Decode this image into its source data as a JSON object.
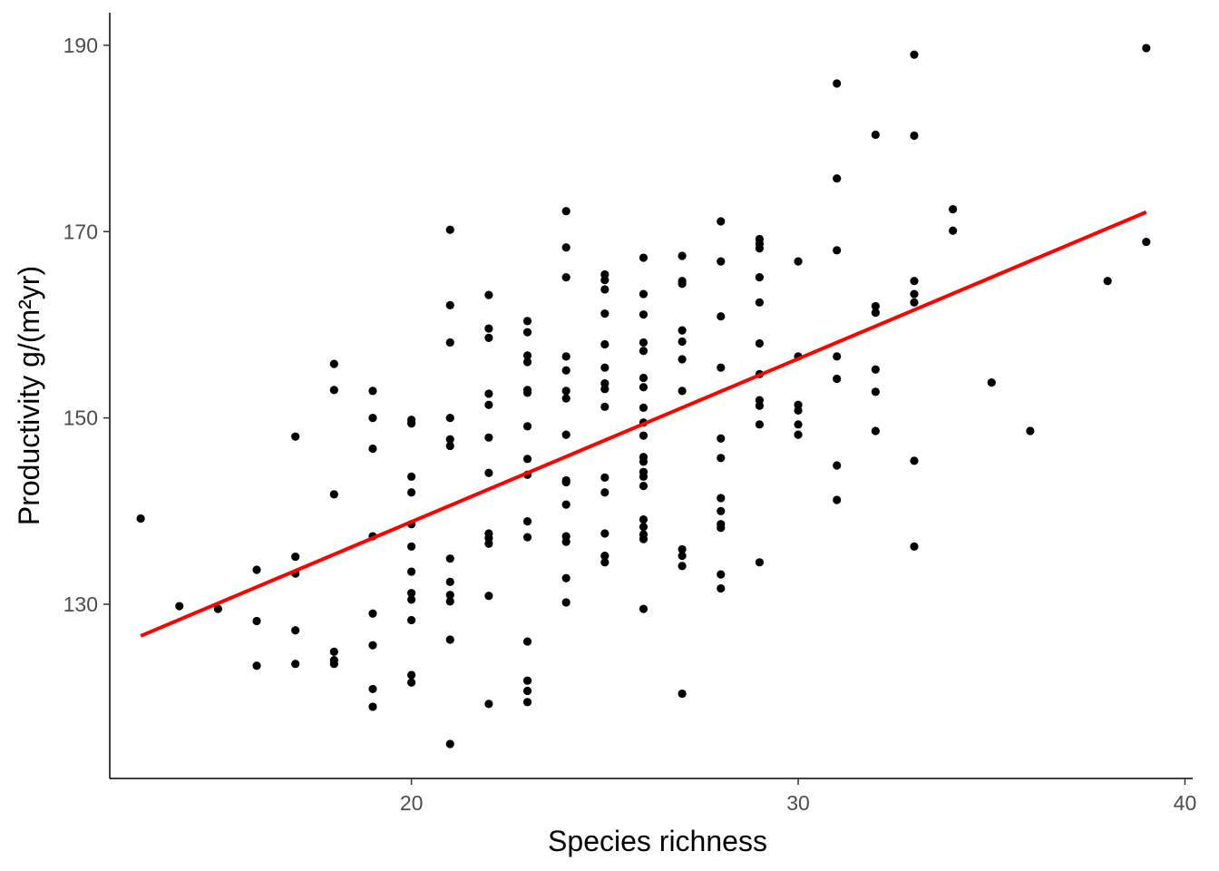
{
  "chart_data": {
    "type": "scatter",
    "xlabel": "Species richness",
    "ylabel": "Productivity g/(m²yr)",
    "xlim": [
      12.2,
      40.2
    ],
    "ylim": [
      111.3,
      193.5
    ],
    "x_ticks": [
      20,
      30,
      40
    ],
    "x_tick_labels": [
      "20",
      "30",
      "40"
    ],
    "y_ticks": [
      130,
      150,
      170,
      190
    ],
    "y_tick_labels": [
      "130",
      "150",
      "170",
      "190"
    ],
    "grid": false,
    "legend": "none",
    "point_color": "#000000",
    "points": [
      [
        13,
        139.2
      ],
      [
        14,
        129.8
      ],
      [
        15,
        129.5
      ],
      [
        16,
        133.7
      ],
      [
        16,
        128.2
      ],
      [
        16,
        123.4
      ],
      [
        17,
        148.0
      ],
      [
        17,
        135.1
      ],
      [
        17,
        133.3
      ],
      [
        17,
        127.2
      ],
      [
        17,
        123.6
      ],
      [
        18,
        155.8
      ],
      [
        18,
        153.0
      ],
      [
        18,
        141.8
      ],
      [
        18,
        124.9
      ],
      [
        18,
        124.0
      ],
      [
        18,
        123.6
      ],
      [
        19,
        152.9
      ],
      [
        19,
        150.0
      ],
      [
        19,
        146.7
      ],
      [
        19,
        137.3
      ],
      [
        19,
        129.0
      ],
      [
        19,
        125.6
      ],
      [
        19,
        120.9
      ],
      [
        19,
        119.0
      ],
      [
        20,
        149.8
      ],
      [
        20,
        149.4
      ],
      [
        20,
        143.7
      ],
      [
        20,
        142.0
      ],
      [
        20,
        138.6
      ],
      [
        20,
        136.2
      ],
      [
        20,
        133.5
      ],
      [
        20,
        131.2
      ],
      [
        20,
        130.5
      ],
      [
        20,
        128.3
      ],
      [
        20,
        122.4
      ],
      [
        20,
        121.6
      ],
      [
        21,
        170.2
      ],
      [
        21,
        162.1
      ],
      [
        21,
        158.1
      ],
      [
        21,
        150.0
      ],
      [
        21,
        147.7
      ],
      [
        21,
        147.0
      ],
      [
        21,
        134.9
      ],
      [
        21,
        132.4
      ],
      [
        21,
        131.0
      ],
      [
        21,
        130.3
      ],
      [
        21,
        126.2
      ],
      [
        21,
        115.0
      ],
      [
        22,
        163.2
      ],
      [
        22,
        159.6
      ],
      [
        22,
        158.6
      ],
      [
        22,
        152.6
      ],
      [
        22,
        151.4
      ],
      [
        22,
        147.9
      ],
      [
        22,
        144.1
      ],
      [
        22,
        137.6
      ],
      [
        22,
        137.1
      ],
      [
        22,
        136.5
      ],
      [
        22,
        130.9
      ],
      [
        22,
        119.3
      ],
      [
        23,
        160.4
      ],
      [
        23,
        159.2
      ],
      [
        23,
        156.7
      ],
      [
        23,
        156.0
      ],
      [
        23,
        153.0
      ],
      [
        23,
        152.7
      ],
      [
        23,
        149.1
      ],
      [
        23,
        145.6
      ],
      [
        23,
        143.9
      ],
      [
        23,
        138.9
      ],
      [
        23,
        137.2
      ],
      [
        23,
        126.0
      ],
      [
        23,
        121.8
      ],
      [
        23,
        120.7
      ],
      [
        23,
        119.5
      ],
      [
        24,
        172.2
      ],
      [
        24,
        168.3
      ],
      [
        24,
        165.1
      ],
      [
        24,
        156.6
      ],
      [
        24,
        155.1
      ],
      [
        24,
        152.9
      ],
      [
        24,
        152.1
      ],
      [
        24,
        148.2
      ],
      [
        24,
        143.3
      ],
      [
        24,
        143.1
      ],
      [
        24,
        140.7
      ],
      [
        24,
        137.3
      ],
      [
        24,
        136.7
      ],
      [
        24,
        132.8
      ],
      [
        24,
        130.2
      ],
      [
        25,
        165.4
      ],
      [
        25,
        164.8
      ],
      [
        25,
        163.8
      ],
      [
        25,
        161.2
      ],
      [
        25,
        157.9
      ],
      [
        25,
        155.4
      ],
      [
        25,
        153.7
      ],
      [
        25,
        153.1
      ],
      [
        25,
        151.2
      ],
      [
        25,
        143.6
      ],
      [
        25,
        142.0
      ],
      [
        25,
        137.6
      ],
      [
        25,
        135.2
      ],
      [
        25,
        134.5
      ],
      [
        26,
        167.2
      ],
      [
        26,
        163.3
      ],
      [
        26,
        161.1
      ],
      [
        26,
        158.1
      ],
      [
        26,
        157.2
      ],
      [
        26,
        154.3
      ],
      [
        26,
        153.3
      ],
      [
        26,
        151.1
      ],
      [
        26,
        149.5
      ],
      [
        26,
        148.1
      ],
      [
        26,
        145.8
      ],
      [
        26,
        145.3
      ],
      [
        26,
        144.2
      ],
      [
        26,
        143.7
      ],
      [
        26,
        142.7
      ],
      [
        26,
        139.1
      ],
      [
        26,
        138.3
      ],
      [
        26,
        137.5
      ],
      [
        26,
        137.0
      ],
      [
        26,
        129.5
      ],
      [
        27,
        167.4
      ],
      [
        27,
        164.7
      ],
      [
        27,
        164.4
      ],
      [
        27,
        159.4
      ],
      [
        27,
        158.2
      ],
      [
        27,
        156.3
      ],
      [
        27,
        152.9
      ],
      [
        27,
        135.9
      ],
      [
        27,
        135.2
      ],
      [
        27,
        134.1
      ],
      [
        27,
        120.4
      ],
      [
        28,
        171.1
      ],
      [
        28,
        166.8
      ],
      [
        28,
        160.9
      ],
      [
        28,
        155.4
      ],
      [
        28,
        147.8
      ],
      [
        28,
        145.7
      ],
      [
        28,
        141.4
      ],
      [
        28,
        140.0
      ],
      [
        28,
        138.6
      ],
      [
        28,
        138.2
      ],
      [
        28,
        133.2
      ],
      [
        28,
        131.7
      ],
      [
        29,
        169.2
      ],
      [
        29,
        168.7
      ],
      [
        29,
        168.2
      ],
      [
        29,
        165.1
      ],
      [
        29,
        162.4
      ],
      [
        29,
        158.0
      ],
      [
        29,
        154.7
      ],
      [
        29,
        151.9
      ],
      [
        29,
        151.3
      ],
      [
        29,
        149.3
      ],
      [
        29,
        134.5
      ],
      [
        30,
        166.8
      ],
      [
        30,
        156.6
      ],
      [
        30,
        151.4
      ],
      [
        30,
        150.8
      ],
      [
        30,
        149.3
      ],
      [
        30,
        148.2
      ],
      [
        31,
        185.9
      ],
      [
        31,
        175.7
      ],
      [
        31,
        168.0
      ],
      [
        31,
        156.6
      ],
      [
        31,
        154.2
      ],
      [
        31,
        144.9
      ],
      [
        31,
        141.2
      ],
      [
        32,
        180.4
      ],
      [
        32,
        162.0
      ],
      [
        32,
        161.3
      ],
      [
        32,
        155.2
      ],
      [
        32,
        152.8
      ],
      [
        32,
        148.6
      ],
      [
        33,
        189.0
      ],
      [
        33,
        180.3
      ],
      [
        33,
        164.7
      ],
      [
        33,
        163.3
      ],
      [
        33,
        162.4
      ],
      [
        33,
        145.4
      ],
      [
        33,
        136.2
      ],
      [
        34,
        172.4
      ],
      [
        34,
        170.1
      ],
      [
        35,
        153.8
      ],
      [
        36,
        148.6
      ],
      [
        38,
        164.7
      ],
      [
        39,
        189.7
      ],
      [
        39,
        168.9
      ]
    ],
    "trend_line": {
      "color": "#ff0000",
      "x": [
        13,
        39
      ],
      "y": [
        126.6,
        172.1
      ]
    }
  }
}
